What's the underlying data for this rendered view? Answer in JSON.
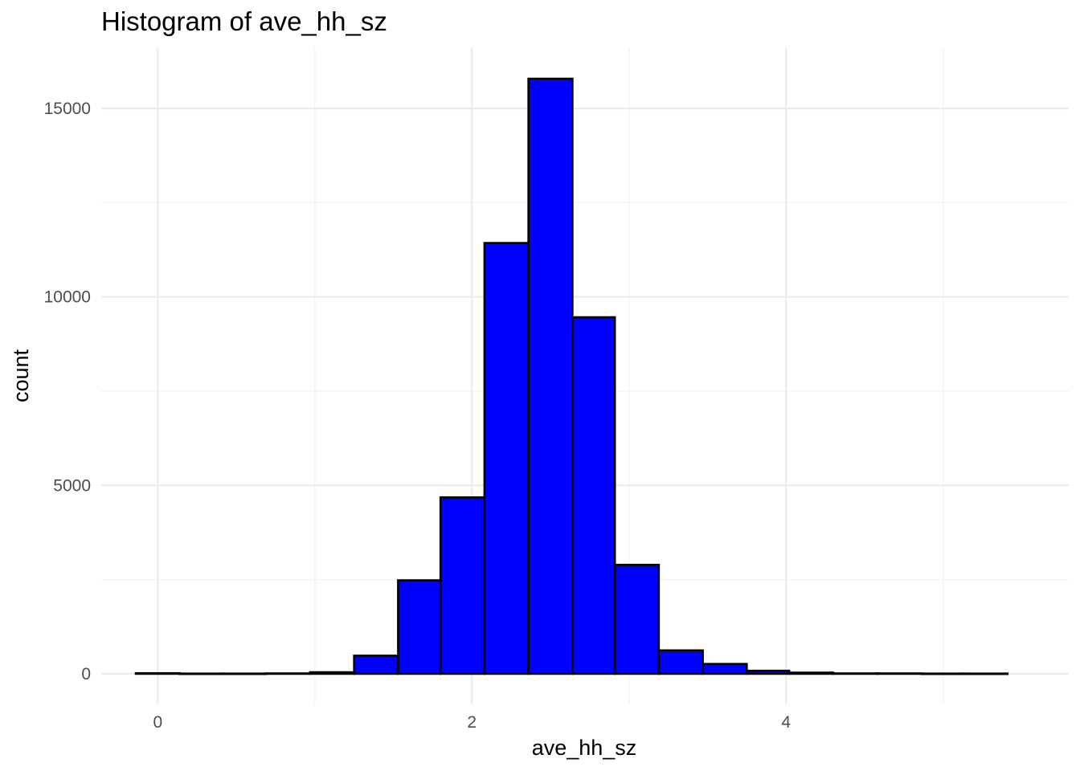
{
  "chart_data": {
    "type": "bar",
    "title": "Histogram of ave_hh_sz",
    "xlabel": "ave_hh_sz",
    "ylabel": "count",
    "bar_fill": "#0000ff",
    "bar_outline": "#000000",
    "grid": true,
    "legend": "none",
    "xlim": [
      -0.36,
      5.8
    ],
    "ylim": [
      -790,
      16600
    ],
    "x_ticks": [
      0,
      2,
      4
    ],
    "y_ticks": [
      0,
      5000,
      10000,
      15000
    ],
    "x_tick_labels": [
      "0",
      "2",
      "4"
    ],
    "y_tick_labels": [
      "0",
      "5000",
      "10000",
      "15000"
    ],
    "bin_width": 0.2775,
    "bins": [
      {
        "x_start": -0.14,
        "x_end": 0.14,
        "count": 15
      },
      {
        "x_start": 0.14,
        "x_end": 0.42,
        "count": 5
      },
      {
        "x_start": 0.42,
        "x_end": 0.69,
        "count": 5
      },
      {
        "x_start": 0.69,
        "x_end": 0.97,
        "count": 10
      },
      {
        "x_start": 0.97,
        "x_end": 1.25,
        "count": 40
      },
      {
        "x_start": 1.25,
        "x_end": 1.53,
        "count": 480
      },
      {
        "x_start": 1.53,
        "x_end": 1.8,
        "count": 2480
      },
      {
        "x_start": 1.8,
        "x_end": 2.08,
        "count": 4680
      },
      {
        "x_start": 2.08,
        "x_end": 2.36,
        "count": 11430
      },
      {
        "x_start": 2.36,
        "x_end": 2.64,
        "count": 15790
      },
      {
        "x_start": 2.64,
        "x_end": 2.91,
        "count": 9460
      },
      {
        "x_start": 2.91,
        "x_end": 3.19,
        "count": 2890
      },
      {
        "x_start": 3.19,
        "x_end": 3.47,
        "count": 620
      },
      {
        "x_start": 3.47,
        "x_end": 3.75,
        "count": 260
      },
      {
        "x_start": 3.75,
        "x_end": 4.02,
        "count": 80
      },
      {
        "x_start": 4.02,
        "x_end": 4.3,
        "count": 30
      },
      {
        "x_start": 4.3,
        "x_end": 4.58,
        "count": 10
      },
      {
        "x_start": 4.58,
        "x_end": 4.86,
        "count": 10
      },
      {
        "x_start": 4.86,
        "x_end": 5.13,
        "count": 5
      },
      {
        "x_start": 5.13,
        "x_end": 5.41,
        "count": 5
      }
    ]
  }
}
